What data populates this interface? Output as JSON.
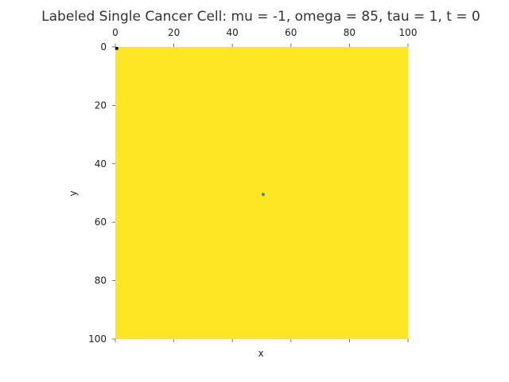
{
  "chart_data": {
    "type": "heatmap",
    "title": "Labeled Single Cancer Cell: mu = -1, omega = 85, tau = 1, t = 0",
    "xlabel": "x",
    "ylabel": "y",
    "xlim": [
      0,
      100
    ],
    "ylim": [
      100,
      0
    ],
    "x_ticks": [
      "0",
      "20",
      "40",
      "60",
      "80",
      "100"
    ],
    "y_ticks": [
      "0",
      "20",
      "40",
      "60",
      "80",
      "100"
    ],
    "x_tick_values": [
      0,
      20,
      40,
      60,
      80,
      100
    ],
    "y_tick_values": [
      0,
      20,
      40,
      60,
      80,
      100
    ],
    "x_axis_position": "top",
    "y_axis_inverted": true,
    "grid": false,
    "legend": "none",
    "background_color": "#fde725",
    "cells": [
      {
        "x": 0,
        "y": 0,
        "color": "#000000"
      },
      {
        "x": 50,
        "y": 50,
        "color": "#21918c"
      }
    ]
  }
}
